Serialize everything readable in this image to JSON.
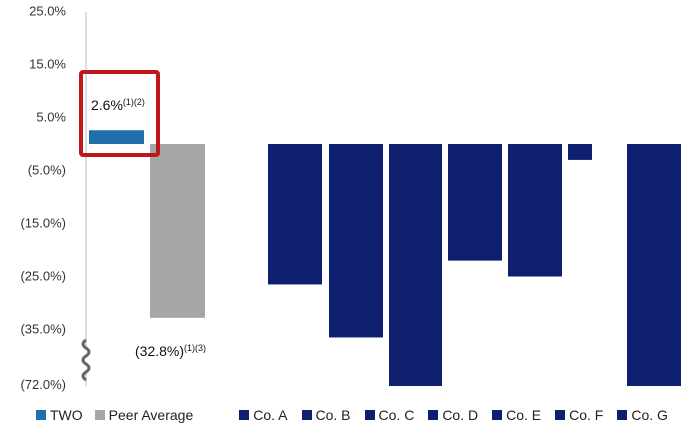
{
  "chart_data": {
    "type": "bar",
    "categories": [
      "TWO",
      "Peer Average",
      "Co. A",
      "Co. B",
      "Co. C",
      "Co. D",
      "Co. E",
      "Co. F",
      "Co. G"
    ],
    "values": [
      2.6,
      -32.8,
      -26.5,
      -36.5,
      -72.0,
      -22.0,
      -25.0,
      -3.0,
      -72.0
    ],
    "y_tick_labels": [
      "25.0%",
      "15.0%",
      "5.0%",
      "(5.0%)",
      "(15.0%)",
      "(25.0%)",
      "(35.0%)",
      "(72.0%)"
    ],
    "y_ticks": [
      25,
      15,
      5,
      -5,
      -15,
      -25,
      -35,
      -72
    ],
    "ylim_display": [
      -40,
      25
    ],
    "axis_break": true,
    "colors": {
      "TWO": "#1f6fad",
      "Peer Average": "#a6a6a6",
      "Companies": "#0d1f6e",
      "highlight_box": "#c0171d",
      "axis": "#bbbbbb"
    },
    "annotations": {
      "two_value": "2.6%",
      "two_note": "(1)(2)",
      "peer_value": "(32.8%)",
      "peer_note": "(1)(3)"
    },
    "legend": [
      "TWO",
      "Peer Average",
      "Co. A",
      "Co. B",
      "Co. C",
      "Co. D",
      "Co. E",
      "Co. F",
      "Co. G"
    ],
    "legend_position": "bottom",
    "grid": false
  }
}
